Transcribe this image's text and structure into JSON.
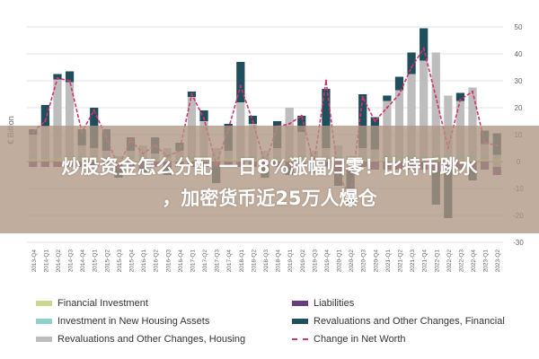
{
  "headline": {
    "line1": "炒股资金怎么分配 一日8%涨幅归零！比特币跳水",
    "line2": "，加密货币近25万人爆仓"
  },
  "chart_data": {
    "type": "bar",
    "ylabel": "€ Billion",
    "ylim": [
      -30,
      50
    ],
    "yticks": [
      50,
      40,
      30,
      20,
      10,
      0,
      -10,
      -20,
      -30
    ],
    "categories": [
      "2013-Q4",
      "2014-Q1",
      "2014-Q2",
      "2014-Q3",
      "2014-Q4",
      "2015-Q1",
      "2015-Q2",
      "2015-Q3",
      "2015-Q4",
      "2016-Q1",
      "2016-Q2",
      "2016-Q3",
      "2016-Q4",
      "2017-Q1",
      "2017-Q2",
      "2017-Q3",
      "2017-Q4",
      "2018-Q1",
      "2018-Q2",
      "2018-Q3",
      "2018-Q4",
      "2019-Q1",
      "2019-Q2",
      "2019-Q3",
      "2019-Q4",
      "2020-Q1",
      "2020-Q2",
      "2020-Q3",
      "2020-Q4",
      "2021-Q1",
      "2021-Q2",
      "2021-Q3",
      "2021-Q4",
      "2022-Q1",
      "2022-Q2",
      "2022-Q3",
      "2022-Q4",
      "2023-Q1",
      "2023-Q2"
    ],
    "grid": true,
    "legend_position": "bottom",
    "series": [
      {
        "name": "Financial Investment",
        "color": "#c8d98a",
        "values": [
          1,
          1,
          1.5,
          1.5,
          1,
          1,
          1,
          1,
          1,
          1,
          1,
          1,
          1,
          1,
          1,
          1,
          1,
          1,
          1,
          1,
          1,
          1,
          1,
          1,
          1,
          1,
          1,
          1,
          1,
          1,
          1,
          1,
          1,
          1,
          1,
          1,
          1,
          1,
          1
        ]
      },
      {
        "name": "Investment in New Housing Assets",
        "color": "#8fd0c8",
        "values": [
          1,
          1,
          1,
          1,
          1,
          1,
          1,
          1,
          1,
          1,
          1,
          1,
          1,
          1,
          1,
          1,
          1,
          1,
          1,
          1,
          1,
          1,
          1,
          1,
          1,
          1,
          1,
          1,
          1.5,
          1.5,
          1.5,
          1.5,
          1.5,
          1.5,
          1.5,
          1.5,
          1.5,
          1.5,
          1.5
        ]
      },
      {
        "name": "Revaluations and Other Changes, Housing",
        "color": "#bdbdbd",
        "values": [
          8,
          11,
          28,
          27,
          4,
          3,
          2,
          -1,
          2,
          4,
          1,
          3,
          2,
          22,
          13,
          3,
          2,
          20,
          12,
          2,
          3,
          18,
          9,
          2,
          3,
          4,
          -2,
          3,
          2,
          20,
          24,
          30,
          35,
          38,
          22,
          20,
          25,
          4,
          -2
        ]
      },
      {
        "name": "Liabilities",
        "color": "#6a3d7c",
        "values": [
          -2,
          -2,
          -2,
          -2,
          -2,
          -2,
          -2,
          -2,
          -2,
          -2,
          -2,
          -2,
          -2,
          -2,
          -2,
          -2,
          -2,
          -2,
          -2,
          -2,
          -2,
          -2,
          -2,
          -2,
          -2,
          -3,
          -2,
          -2,
          -3,
          -3,
          -3,
          -3,
          -3,
          -3,
          -3,
          -3,
          -3,
          -3,
          -3
        ]
      },
      {
        "name": "Revaluations and Other Changes, Financial",
        "color": "#1f4e5c",
        "values": [
          2,
          8,
          2,
          4,
          6,
          15,
          8,
          -3,
          5,
          -2,
          6,
          -3,
          3,
          2,
          4,
          -6,
          10,
          15,
          3,
          -4,
          10,
          -3,
          6,
          -2,
          22,
          -6,
          -12,
          20,
          12,
          2,
          5,
          8,
          12,
          -13,
          -18,
          3,
          -4,
          5,
          8
        ]
      },
      {
        "name": "Change in Net Worth",
        "color": "#d6336c",
        "values": [
          11,
          15,
          31,
          30,
          11,
          19,
          9,
          -2,
          8,
          3,
          6,
          2,
          4,
          25,
          16,
          -1,
          12,
          28,
          15,
          -1,
          13,
          14,
          17,
          -1,
          30,
          -5,
          -13,
          24,
          15,
          20,
          25,
          35,
          42,
          24,
          5,
          23,
          26,
          7,
          6
        ]
      }
    ]
  },
  "legend": {
    "items": [
      {
        "label": "Financial Investment",
        "color": "#c8d98a",
        "style": "bar"
      },
      {
        "label": "Liabilities",
        "color": "#6a3d7c",
        "style": "bar"
      },
      {
        "label": "Investment in New Housing Assets",
        "color": "#8fd0c8",
        "style": "bar"
      },
      {
        "label": "Revaluations and Other Changes, Financial",
        "color": "#1f4e5c",
        "style": "bar"
      },
      {
        "label": "Revaluations and Other Changes, Housing",
        "color": "#bdbdbd",
        "style": "bar"
      },
      {
        "label": "Change in Net Worth",
        "color": "#d6336c",
        "style": "dash"
      }
    ]
  }
}
